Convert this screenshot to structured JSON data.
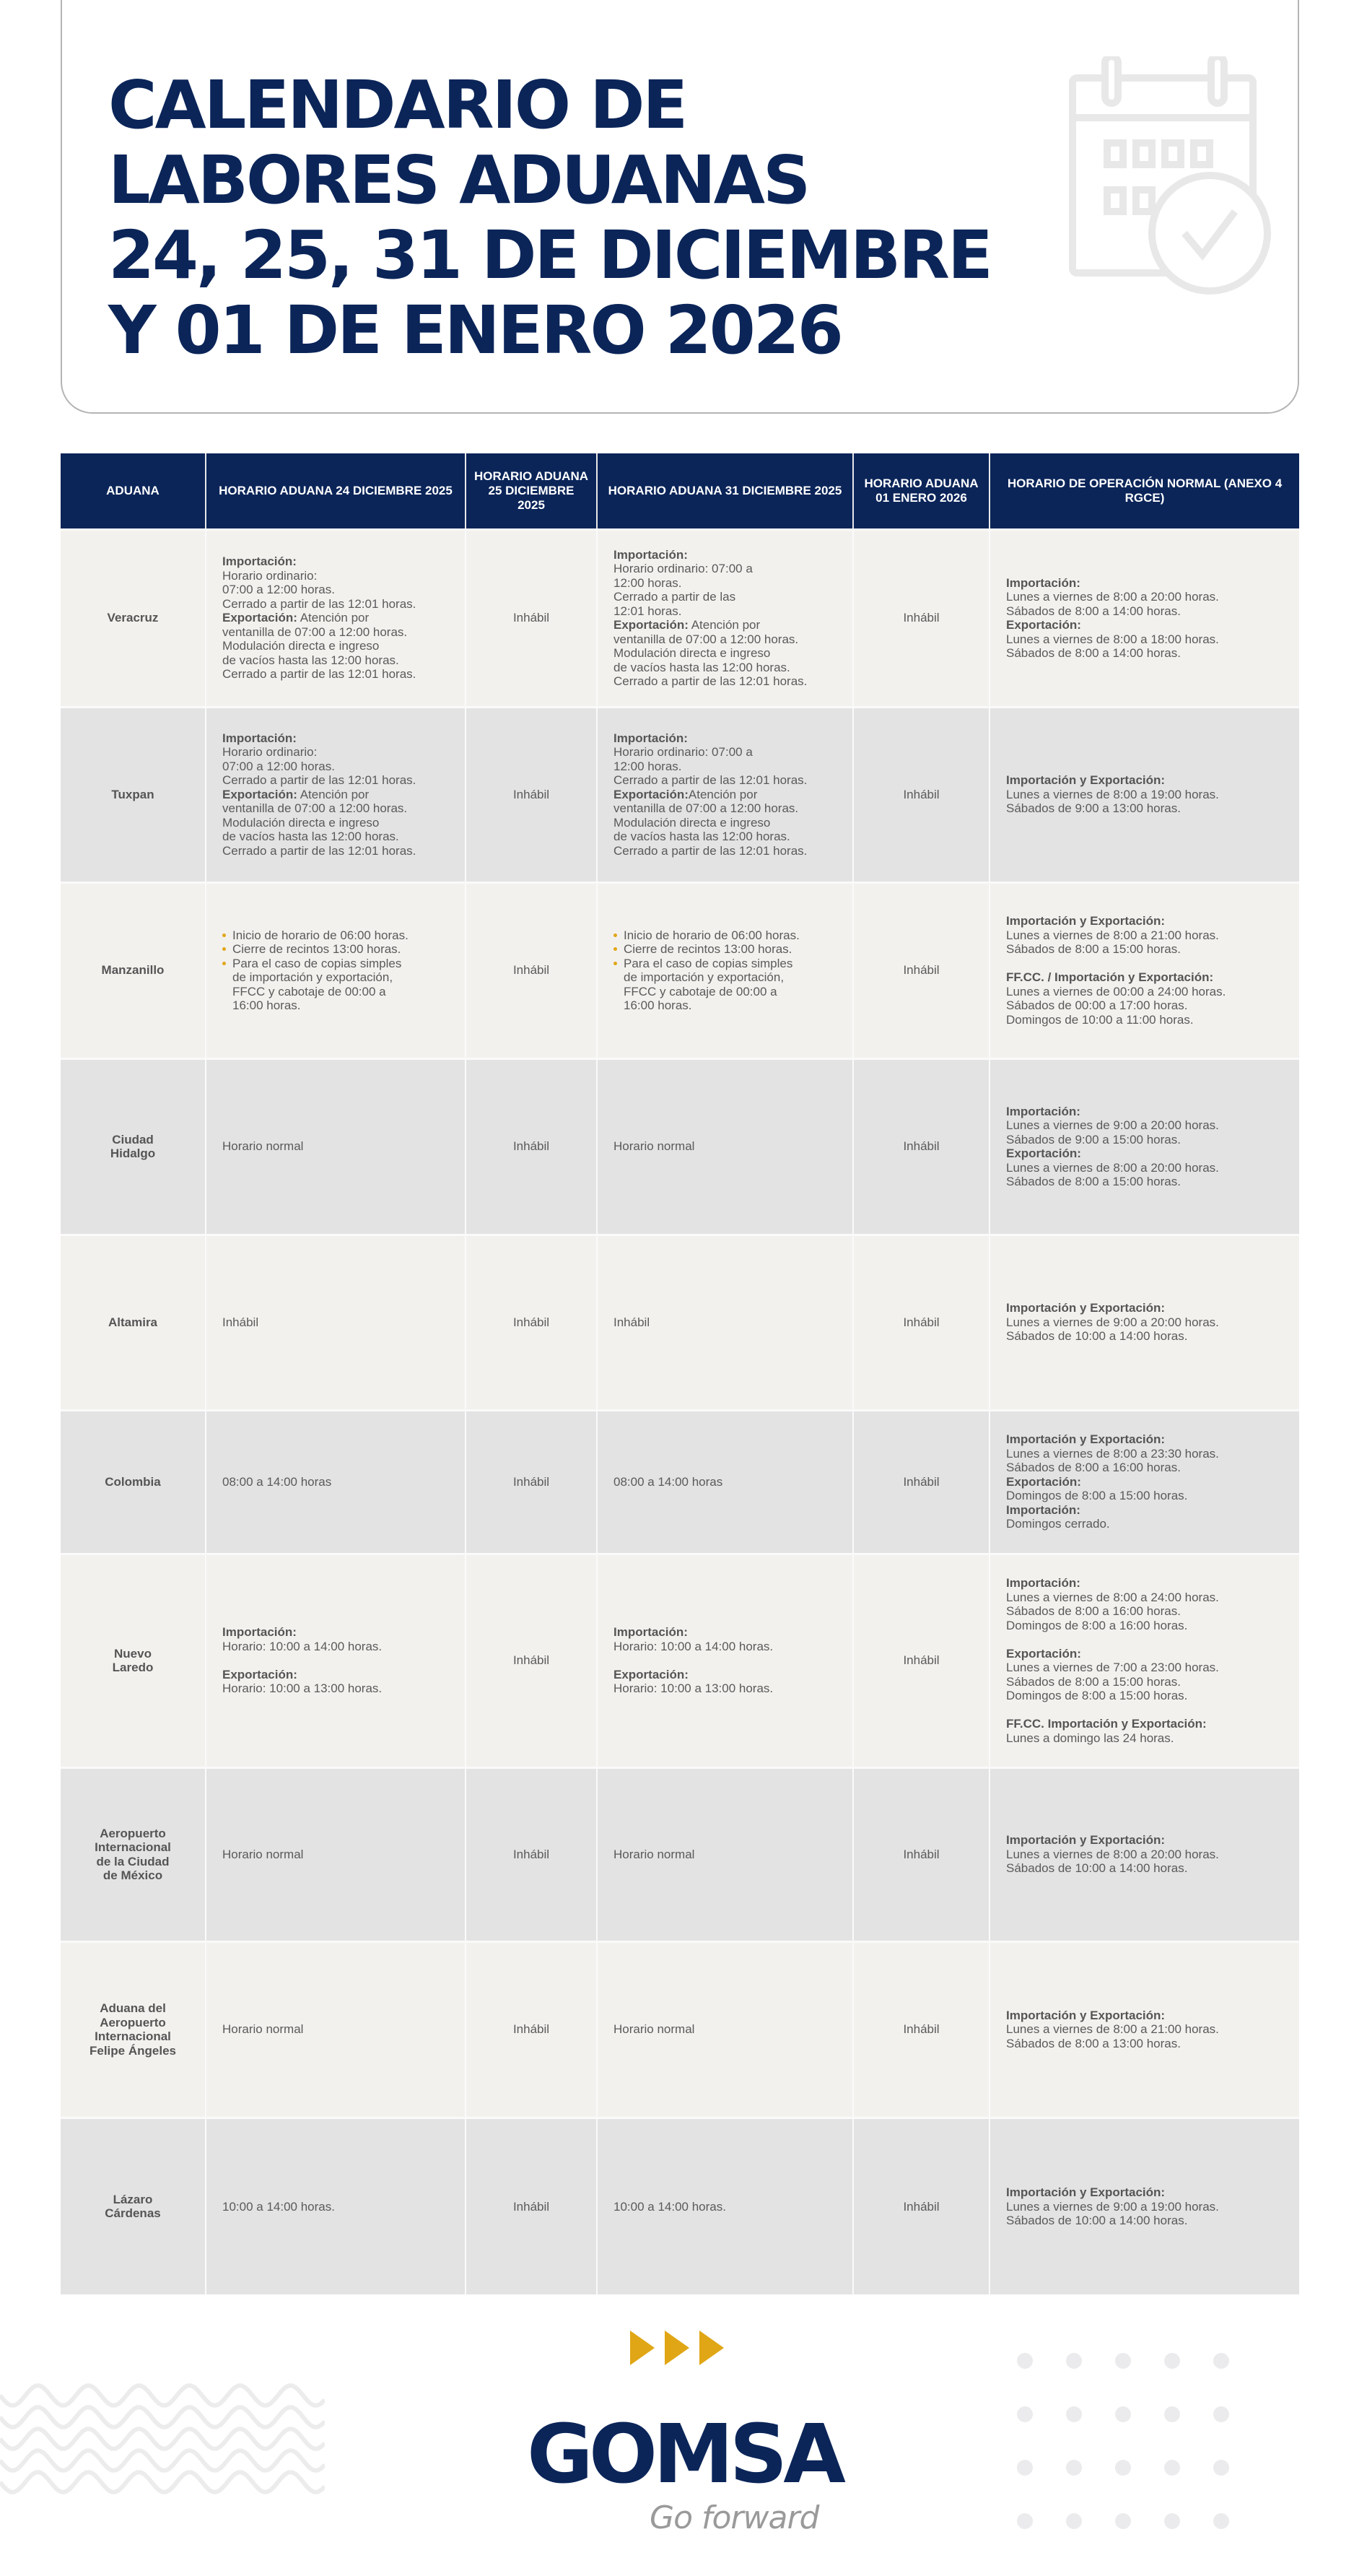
{
  "header": {
    "title_lines": [
      "CALENDARIO DE",
      "LABORES ADUANAS",
      "24, 25, 31 DE DICIEMBRE",
      "Y 01 DE ENERO 2026"
    ],
    "icon": "calendar-check-icon"
  },
  "colors": {
    "navy": "#0b2559",
    "accent": "#e0a615",
    "row_light": "#f3f1ee",
    "row_dark": "#e3e3e3"
  },
  "table": {
    "columns": [
      "ADUANA",
      "HORARIO ADUANA 24 DICIEMBRE 2025",
      "HORARIO ADUANA 25 DICIEMBRE 2025",
      "HORARIO ADUANA 31 DICIEMBRE 2025",
      "HORARIO ADUANA 01 ENERO 2026",
      "HORARIO DE OPERACIÓN NORMAL (ANEXO 4 RGCE)"
    ],
    "rows": [
      {
        "aduana": [
          "Veracruz"
        ],
        "d24": [
          {
            "b": "Importación:"
          },
          {
            "t": "Horario ordinario:"
          },
          {
            "t": "07:00 a 12:00 horas."
          },
          {
            "t": "Cerrado a partir de las 12:01 horas."
          },
          {
            "b": "Exportación:",
            "t": " Atención por"
          },
          {
            "t": "ventanilla de 07:00 a 12:00 horas."
          },
          {
            "t": "Modulación directa e ingreso"
          },
          {
            "t": "de vacíos hasta las 12:00 horas."
          },
          {
            "t": "Cerrado a partir de las 12:01 horas."
          }
        ],
        "d25": "Inhábil",
        "d31": [
          {
            "b": "Importación:"
          },
          {
            "t": "Horario ordinario: 07:00 a"
          },
          {
            "t": "12:00 horas."
          },
          {
            "t": "Cerrado a partir de las"
          },
          {
            "t": "12:01 horas."
          },
          {
            "b": "Exportación:",
            "t": " Atención por"
          },
          {
            "t": "ventanilla de 07:00 a 12:00 horas."
          },
          {
            "t": "Modulación directa e ingreso"
          },
          {
            "t": "de vacíos hasta las 12:00 horas."
          },
          {
            "t": "Cerrado a partir de las 12:01 horas."
          }
        ],
        "d01": "Inhábil",
        "normal": [
          {
            "b": "Importación:"
          },
          {
            "t": "Lunes a viernes de 8:00 a 20:00 horas."
          },
          {
            "t": "Sábados de 8:00 a 14:00 horas."
          },
          {
            "b": "Exportación:"
          },
          {
            "t": "Lunes a viernes de 8:00 a 18:00 horas."
          },
          {
            "t": "Sábados de 8:00 a 14:00 horas."
          }
        ]
      },
      {
        "aduana": [
          "Tuxpan"
        ],
        "d24": [
          {
            "b": "Importación:"
          },
          {
            "t": "Horario ordinario:"
          },
          {
            "t": "07:00 a 12:00 horas."
          },
          {
            "t": "Cerrado a partir de las 12:01 horas."
          },
          {
            "b": "Exportación:",
            "t": " Atención por"
          },
          {
            "t": "ventanilla de 07:00 a 12:00 horas."
          },
          {
            "t": "Modulación directa e ingreso"
          },
          {
            "t": "de vacíos hasta las 12:00 horas."
          },
          {
            "t": "Cerrado a partir de las 12:01 horas."
          }
        ],
        "d25": "Inhábil",
        "d31": [
          {
            "b": "Importación:"
          },
          {
            "t": "Horario ordinario: 07:00 a"
          },
          {
            "t": "12:00 horas."
          },
          {
            "t": "Cerrado a partir de las 12:01 horas."
          },
          {
            "b": "Exportación:",
            "t": "Atención por"
          },
          {
            "t": "ventanilla de 07:00 a 12:00 horas."
          },
          {
            "t": "Modulación directa e ingreso"
          },
          {
            "t": "de vacíos hasta las 12:00 horas."
          },
          {
            "t": "Cerrado a partir de las 12:01 horas."
          }
        ],
        "d01": "Inhábil",
        "normal": [
          {
            "b": "Importación y Exportación:"
          },
          {
            "t": "Lunes a viernes de 8:00 a 19:00 horas."
          },
          {
            "t": "Sábados de 9:00 a 13:00 horas."
          }
        ]
      },
      {
        "aduana": [
          "Manzanillo"
        ],
        "d24": [
          {
            "bullet": true,
            "t": "Inicio de horario de 06:00 horas."
          },
          {
            "bullet": true,
            "t": "Cierre de recintos 13:00 horas."
          },
          {
            "bullet": true,
            "t": "Para el caso de copias simples"
          },
          {
            "ind": true,
            "t": "de importación y exportación,"
          },
          {
            "ind": true,
            "t": "FFCC y cabotaje de 00:00 a"
          },
          {
            "ind": true,
            "t": "16:00 horas."
          }
        ],
        "d25": "Inhábil",
        "d31": [
          {
            "bullet": true,
            "t": "Inicio de horario de 06:00 horas."
          },
          {
            "bullet": true,
            "t": "Cierre de recintos 13:00 horas."
          },
          {
            "bullet": true,
            "t": "Para el caso de copias simples"
          },
          {
            "ind": true,
            "t": "de importación y exportación,"
          },
          {
            "ind": true,
            "t": "FFCC y cabotaje de 00:00 a"
          },
          {
            "ind": true,
            "t": "16:00 horas."
          }
        ],
        "d01": "Inhábil",
        "normal": [
          {
            "b": "Importación y Exportación:"
          },
          {
            "t": "Lunes a viernes de 8:00 a 21:00 horas."
          },
          {
            "t": "Sábados de 8:00 a 15:00 horas."
          },
          {
            "gap": true
          },
          {
            "b": "FF.CC. / Importación y Exportación:"
          },
          {
            "t": "Lunes a viernes de 00:00 a 24:00 horas."
          },
          {
            "t": "Sábados de 00:00 a 17:00 horas."
          },
          {
            "t": "Domingos de 10:00 a 11:00 horas."
          }
        ]
      },
      {
        "aduana": [
          "Ciudad",
          "Hidalgo"
        ],
        "d24": [
          {
            "t": "Horario normal"
          }
        ],
        "d25": "Inhábil",
        "d31": [
          {
            "t": "Horario normal"
          }
        ],
        "d01": "Inhábil",
        "normal": [
          {
            "b": "Importación:"
          },
          {
            "t": "Lunes a viernes de 9:00 a 20:00 horas."
          },
          {
            "t": "Sábados de 9:00 a 15:00 horas."
          },
          {
            "b": "Exportación:"
          },
          {
            "t": "Lunes a viernes de 8:00 a 20:00 horas."
          },
          {
            "t": "Sábados de 8:00 a 15:00 horas."
          }
        ]
      },
      {
        "aduana": [
          "Altamira"
        ],
        "d24": [
          {
            "t": "Inhábil"
          }
        ],
        "d25": "Inhábil",
        "d31": [
          {
            "t": "Inhábil"
          }
        ],
        "d01": "Inhábil",
        "normal": [
          {
            "b": "Importación y Exportación:"
          },
          {
            "t": "Lunes a viernes de 9:00 a 20:00 horas."
          },
          {
            "t": "Sábados de 10:00 a 14:00 horas."
          }
        ]
      },
      {
        "aduana": [
          "Colombia"
        ],
        "d24": [
          {
            "t": "08:00 a 14:00 horas"
          }
        ],
        "d25": "Inhábil",
        "d31": [
          {
            "t": "08:00 a 14:00 horas"
          }
        ],
        "d01": "Inhábil",
        "normal": [
          {
            "b": "Importación y Exportación:"
          },
          {
            "t": "Lunes a viernes de 8:00 a 23:30 horas."
          },
          {
            "t": "Sábados de 8:00 a 16:00 horas."
          },
          {
            "b": "Exportación:"
          },
          {
            "t": "Domingos de 8:00 a 15:00 horas."
          },
          {
            "b": "Importación:"
          },
          {
            "t": "Domingos cerrado."
          }
        ]
      },
      {
        "aduana": [
          "Nuevo",
          "Laredo"
        ],
        "d24": [
          {
            "b": "Importación:"
          },
          {
            "t": "Horario: 10:00 a 14:00 horas."
          },
          {
            "gap": true
          },
          {
            "b": "Exportación:"
          },
          {
            "t": "Horario: 10:00 a 13:00 horas."
          }
        ],
        "d25": "Inhábil",
        "d31": [
          {
            "b": "Importación:"
          },
          {
            "t": "Horario: 10:00 a 14:00 horas."
          },
          {
            "gap": true
          },
          {
            "b": "Exportación:"
          },
          {
            "t": "Horario: 10:00 a 13:00 horas."
          }
        ],
        "d01": "Inhábil",
        "normal": [
          {
            "b": "Importación:"
          },
          {
            "t": "Lunes a viernes de 8:00 a 24:00 horas."
          },
          {
            "t": "Sábados de 8:00 a 16:00 horas."
          },
          {
            "t": "Domingos de 8:00 a 16:00 horas."
          },
          {
            "gap": true
          },
          {
            "b": "Exportación:"
          },
          {
            "t": "Lunes a viernes de 7:00 a 23:00 horas."
          },
          {
            "t": "Sábados de 8:00 a 15:00 horas."
          },
          {
            "t": "Domingos de 8:00 a 15:00 horas."
          },
          {
            "gap": true
          },
          {
            "b": "FF.CC. Importación y Exportación:"
          },
          {
            "t": "Lunes a domingo las 24 horas."
          }
        ]
      },
      {
        "aduana": [
          "Aeropuerto",
          "Internacional",
          "de la Ciudad",
          "de México"
        ],
        "d24": [
          {
            "t": "Horario normal"
          }
        ],
        "d25": "Inhábil",
        "d31": [
          {
            "t": "Horario normal"
          }
        ],
        "d01": "Inhábil",
        "normal": [
          {
            "b": "Importación y Exportación:"
          },
          {
            "t": "Lunes a viernes de 8:00 a 20:00 horas."
          },
          {
            "t": "Sábados de 10:00 a 14:00 horas."
          }
        ]
      },
      {
        "aduana": [
          "Aduana del",
          "Aeropuerto",
          "Internacional",
          "Felipe Ángeles"
        ],
        "d24": [
          {
            "t": "Horario normal"
          }
        ],
        "d25": "Inhábil",
        "d31": [
          {
            "t": "Horario normal"
          }
        ],
        "d01": "Inhábil",
        "normal": [
          {
            "b": "Importación y Exportación:"
          },
          {
            "t": "Lunes a viernes de 8:00 a 21:00 horas."
          },
          {
            "t": "Sábados de 8:00 a 13:00 horas."
          }
        ]
      },
      {
        "aduana": [
          "Lázaro",
          "Cárdenas"
        ],
        "d24": [
          {
            "t": "10:00 a 14:00 horas."
          }
        ],
        "d25": "Inhábil",
        "d31": [
          {
            "t": "10:00 a 14:00 horas."
          }
        ],
        "d01": "Inhábil",
        "normal": [
          {
            "b": "Importación y Exportación:"
          },
          {
            "t": "Lunes a viernes de 9:00 a 19:00 horas."
          },
          {
            "t": "Sábados de 10:00 a 14:00 horas."
          }
        ]
      }
    ]
  },
  "footer": {
    "logo": "GOMSA",
    "tagline": "Go forward",
    "icons": [
      "triple-arrow-icon",
      "wave-pattern",
      "dot-grid-pattern"
    ]
  }
}
